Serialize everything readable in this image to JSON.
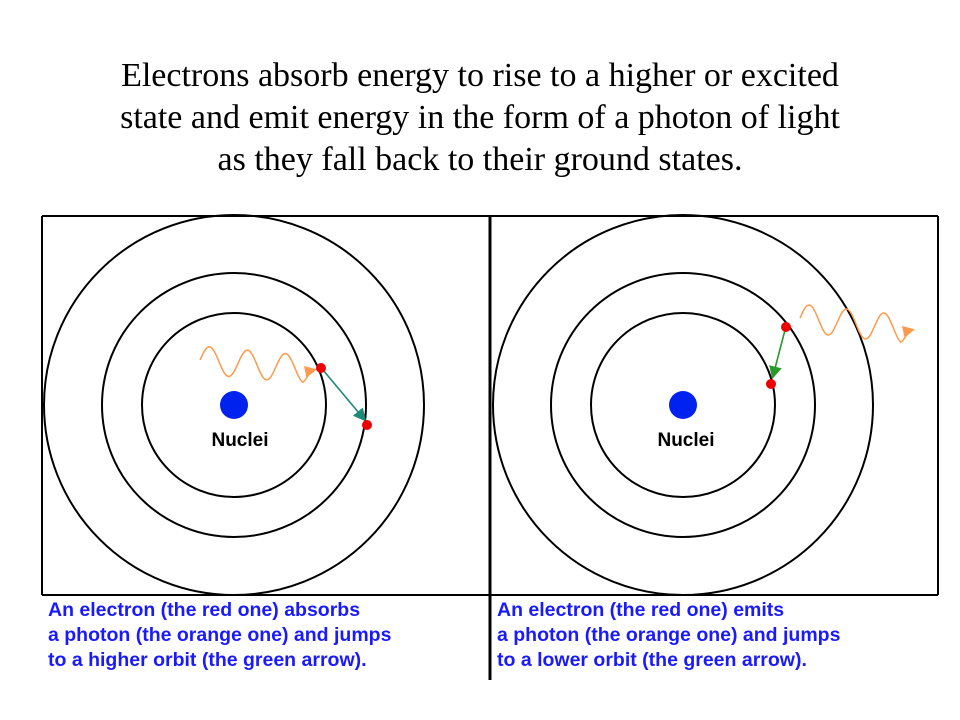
{
  "title": {
    "lines": [
      "Electrons absorb energy to rise to a higher or excited",
      "state and emit energy in the form of a photon of light",
      "as they fall back to their ground states."
    ]
  },
  "panels": [
    {
      "nucleus_label": "Nuclei",
      "caption": [
        "An electron (the red one) absorbs",
        "a photon (the orange one) and jumps",
        "to a higher orbit (the green arrow)."
      ]
    },
    {
      "nucleus_label": "Nuclei",
      "caption": [
        "An electron (the red one) emits",
        "a photon (the orange one) and jumps",
        "to a lower orbit (the green arrow)."
      ]
    }
  ]
}
